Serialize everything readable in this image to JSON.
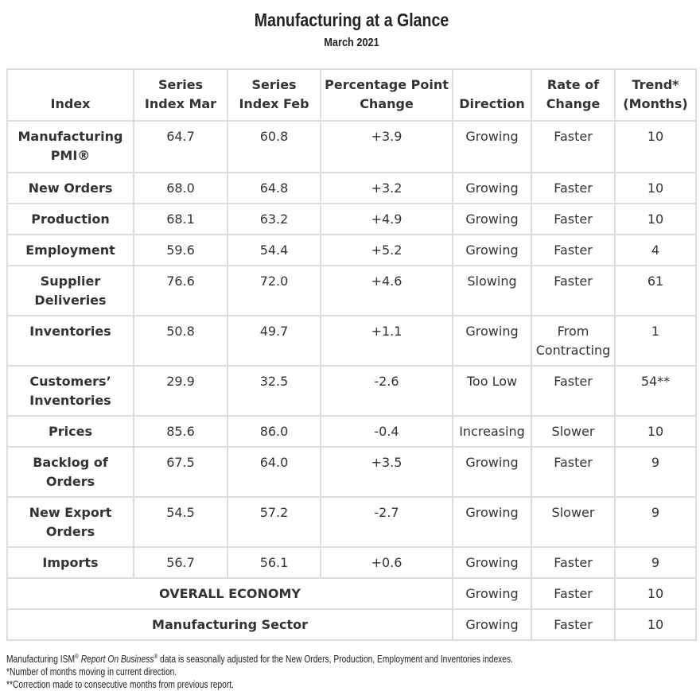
{
  "title": "Manufacturing at a Glance",
  "subtitle": "March 2021",
  "headers": [
    "Index",
    "Series Index Mar",
    "Series Index Feb",
    "Percentage Point Change",
    "Direction",
    "Rate of Change",
    "Trend* (Months)"
  ],
  "rows": [
    [
      "Manufacturing PMI®",
      "64.7",
      "60.8",
      "+3.9",
      "Growing",
      "Faster",
      "10"
    ],
    [
      "New Orders",
      "68.0",
      "64.8",
      "+3.2",
      "Growing",
      "Faster",
      "10"
    ],
    [
      "Production",
      "68.1",
      "63.2",
      "+4.9",
      "Growing",
      "Faster",
      "10"
    ],
    [
      "Employment",
      "59.6",
      "54.4",
      "+5.2",
      "Growing",
      "Faster",
      "4"
    ],
    [
      "Supplier Deliveries",
      "76.6",
      "72.0",
      "+4.6",
      "Slowing",
      "Faster",
      "61"
    ],
    [
      "Inventories",
      "50.8",
      "49.7",
      "+1.1",
      "Growing",
      "From Contracting",
      "1"
    ],
    [
      "Customers’ Inventories",
      "29.9",
      "32.5",
      "-2.6",
      "Too Low",
      "Faster",
      "54**"
    ],
    [
      "Prices",
      "85.6",
      "86.0",
      "-0.4",
      "Increasing",
      "Slower",
      "10"
    ],
    [
      "Backlog of Orders",
      "67.5",
      "64.0",
      "+3.5",
      "Growing",
      "Faster",
      "9"
    ],
    [
      "New Export Orders",
      "54.5",
      "57.2",
      "-2.7",
      "Growing",
      "Slower",
      "9"
    ],
    [
      "Imports",
      "56.7",
      "56.1",
      "+0.6",
      "Growing",
      "Faster",
      "9"
    ]
  ],
  "summary_rows": [
    [
      "OVERALL ECONOMY",
      "Growing",
      "Faster",
      "10"
    ],
    [
      "Manufacturing Sector",
      "Growing",
      "Faster",
      "10"
    ]
  ],
  "notes": {
    "line1_a": "Manufacturing ISM",
    "line1_reg": "®",
    "line1_italic": "Report On Business",
    "line1_reg2": "®",
    "line1_b": " data is seasonally adjusted for the New Orders, Production, Employment and Inventories indexes.",
    "line2": "*Number of months moving in current direction.",
    "line3": "**Correction made to consecutive months from previous report."
  }
}
